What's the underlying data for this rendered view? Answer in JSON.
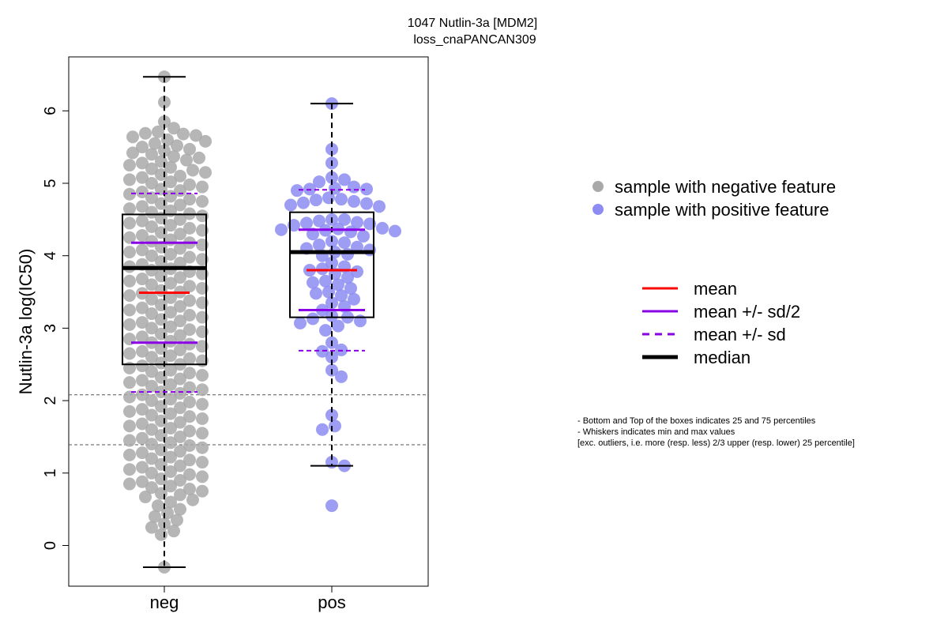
{
  "chart_data": {
    "type": "box",
    "title_line1": "1047 Nutlin-3a [MDM2]",
    "title_line2": "loss_cnaPANCAN309",
    "ylabel": "Nutlin-3a log(IC50)",
    "xlabel": "",
    "categories": [
      "neg",
      "pos"
    ],
    "yticks": [
      0,
      1,
      2,
      3,
      4,
      5,
      6
    ],
    "ylim": [
      -0.55,
      6.75
    ],
    "reference_lines": [
      2.08,
      1.39
    ],
    "groups": [
      {
        "name": "neg",
        "color": "#a9a9a9",
        "whisker_min": -0.3,
        "q1": 2.5,
        "median": 3.83,
        "q3": 4.57,
        "whisker_max": 6.47,
        "mean": 3.49,
        "mean_minus_half_sd": 2.8,
        "mean_plus_half_sd": 4.18,
        "mean_minus_sd": 2.12,
        "mean_plus_sd": 4.86,
        "points": [
          6.47,
          6.12,
          5.85,
          5.76,
          5.71,
          5.69,
          5.68,
          5.66,
          5.64,
          5.6,
          5.58,
          5.55,
          5.52,
          5.5,
          5.47,
          5.45,
          5.42,
          5.4,
          5.37,
          5.35,
          5.32,
          5.3,
          5.28,
          5.25,
          5.22,
          5.2,
          5.18,
          5.15,
          5.12,
          5.1,
          5.08,
          5.05,
          5.02,
          5.0,
          4.98,
          4.95,
          4.92,
          4.9,
          4.88,
          4.85,
          4.82,
          4.8,
          4.78,
          4.75,
          4.72,
          4.7,
          4.68,
          4.65,
          4.62,
          4.6,
          4.58,
          4.55,
          4.52,
          4.5,
          4.48,
          4.45,
          4.42,
          4.4,
          4.38,
          4.35,
          4.32,
          4.3,
          4.28,
          4.25,
          4.22,
          4.2,
          4.18,
          4.15,
          4.12,
          4.1,
          4.08,
          4.05,
          4.02,
          4.0,
          3.98,
          3.95,
          3.92,
          3.9,
          3.88,
          3.85,
          3.82,
          3.8,
          3.78,
          3.75,
          3.72,
          3.7,
          3.68,
          3.65,
          3.62,
          3.6,
          3.58,
          3.55,
          3.52,
          3.5,
          3.48,
          3.45,
          3.42,
          3.4,
          3.38,
          3.35,
          3.32,
          3.3,
          3.28,
          3.25,
          3.22,
          3.2,
          3.18,
          3.15,
          3.12,
          3.1,
          3.08,
          3.05,
          3.02,
          3.0,
          2.98,
          2.95,
          2.92,
          2.9,
          2.88,
          2.85,
          2.82,
          2.8,
          2.78,
          2.75,
          2.72,
          2.7,
          2.68,
          2.65,
          2.62,
          2.6,
          2.58,
          2.55,
          2.52,
          2.5,
          2.48,
          2.45,
          2.42,
          2.4,
          2.38,
          2.35,
          2.32,
          2.3,
          2.28,
          2.25,
          2.22,
          2.2,
          2.18,
          2.15,
          2.12,
          2.1,
          2.08,
          2.05,
          2.02,
          2.0,
          1.98,
          1.95,
          1.92,
          1.9,
          1.88,
          1.85,
          1.82,
          1.8,
          1.78,
          1.75,
          1.72,
          1.7,
          1.68,
          1.65,
          1.62,
          1.6,
          1.58,
          1.55,
          1.52,
          1.5,
          1.48,
          1.45,
          1.42,
          1.4,
          1.38,
          1.35,
          1.32,
          1.3,
          1.28,
          1.25,
          1.22,
          1.2,
          1.18,
          1.15,
          1.12,
          1.1,
          1.08,
          1.05,
          1.02,
          1.0,
          0.98,
          0.95,
          0.92,
          0.9,
          0.88,
          0.85,
          0.82,
          0.8,
          0.78,
          0.75,
          0.72,
          0.7,
          0.67,
          0.63,
          0.6,
          0.55,
          0.5,
          0.45,
          0.4,
          0.35,
          0.3,
          0.25,
          0.2,
          0.15,
          -0.3
        ]
      },
      {
        "name": "pos",
        "color": "#8c8cf2",
        "whisker_min": 1.1,
        "q1": 3.15,
        "median": 4.05,
        "q3": 4.6,
        "whisker_max": 6.1,
        "mean": 3.8,
        "mean_minus_half_sd": 3.25,
        "mean_plus_half_sd": 4.36,
        "mean_minus_sd": 2.69,
        "mean_plus_sd": 4.91,
        "points": [
          6.1,
          5.47,
          5.28,
          5.08,
          5.05,
          5.02,
          4.95,
          4.93,
          4.92,
          4.92,
          4.9,
          4.8,
          4.78,
          4.77,
          4.75,
          4.73,
          4.72,
          4.7,
          4.68,
          4.5,
          4.5,
          4.48,
          4.46,
          4.45,
          4.44,
          4.42,
          4.38,
          4.37,
          4.36,
          4.35,
          4.34,
          4.33,
          4.3,
          4.27,
          4.2,
          4.18,
          4.15,
          4.12,
          4.1,
          4.08,
          4.05,
          4.02,
          4.0,
          3.9,
          3.85,
          3.82,
          3.8,
          3.78,
          3.75,
          3.7,
          3.65,
          3.63,
          3.6,
          3.55,
          3.5,
          3.48,
          3.45,
          3.4,
          3.35,
          3.3,
          3.25,
          3.17,
          3.15,
          3.13,
          3.1,
          3.07,
          3.03,
          2.97,
          2.8,
          2.7,
          2.68,
          2.6,
          2.42,
          2.33,
          1.8,
          1.65,
          1.6,
          1.15,
          1.1,
          0.55
        ]
      }
    ],
    "legend_points": [
      {
        "label": "sample with negative feature",
        "color": "#a9a9a9"
      },
      {
        "label": "sample with positive feature",
        "color": "#8c8cf2"
      }
    ],
    "legend_lines": [
      {
        "label": "mean",
        "color": "#ff0000",
        "style": "solid"
      },
      {
        "label": "mean +/- sd/2",
        "color": "#8a00e6",
        "style": "solid"
      },
      {
        "label": "mean +/- sd",
        "color": "#8a00e6",
        "style": "dashed"
      },
      {
        "label": "median",
        "color": "#000000",
        "style": "thick"
      }
    ],
    "notes": [
      "- Bottom and Top of the boxes indicates 25 and 75 percentiles",
      "- Whiskers indicates min and max values",
      "[exc. outliers, i.e. more (resp. less) 2/3 upper (resp. lower) 25 percentile]"
    ]
  }
}
